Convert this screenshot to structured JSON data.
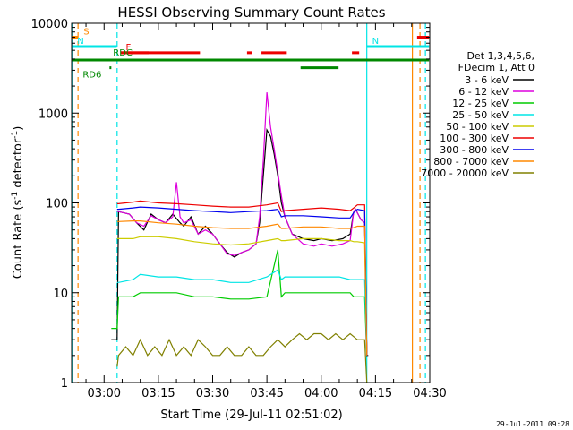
{
  "chart_data": {
    "type": "line",
    "title": "HESSI Observing Summary Count Rates",
    "xlabel": "Start Time (29-Jul-11 02:51:02)",
    "ylabel_main": "Count Rate (s",
    "ylabel_sup1": "-1",
    "ylabel_mid": " detector",
    "ylabel_sup2": "-1",
    "ylabel_end": ")",
    "y_scale": "log",
    "ylim": [
      1,
      10000
    ],
    "xlim_minutes": [
      -8.97,
      90.0
    ],
    "x_ticks": [
      {
        "label": "03:00",
        "min": 0
      },
      {
        "label": "03:15",
        "min": 15
      },
      {
        "label": "03:30",
        "min": 30
      },
      {
        "label": "03:45",
        "min": 45
      },
      {
        "label": "04:00",
        "min": 60
      },
      {
        "label": "04:15",
        "min": 75
      },
      {
        "label": "04:30",
        "min": 90
      }
    ],
    "y_ticks": [
      {
        "label": "1",
        "value": 1
      },
      {
        "label": "10",
        "value": 10
      },
      {
        "label": "100",
        "value": 100
      },
      {
        "label": "1000",
        "value": 1000
      },
      {
        "label": "10000",
        "value": 10000
      }
    ],
    "legend": {
      "position": "right",
      "header1": "Det 1,3,4,5,6,",
      "header2": "FDecim 1, Att 0",
      "entries": [
        {
          "label": "3 - 6 keV",
          "color": "#000000"
        },
        {
          "label": "6 - 12 keV",
          "color": "#dd00dd"
        },
        {
          "label": "12 - 25 keV",
          "color": "#00cc00"
        },
        {
          "label": "25 - 50 keV",
          "color": "#00e5e5"
        },
        {
          "label": "50 - 100 keV",
          "color": "#cccc00"
        },
        {
          "label": "100 - 300 keV",
          "color": "#ee0000"
        },
        {
          "label": "300 - 800 keV",
          "color": "#0000ee"
        },
        {
          "label": "800 - 7000 keV",
          "color": "#ff8800"
        },
        {
          "label": "7000 - 20000 keV",
          "color": "#808000"
        }
      ]
    },
    "series": [
      {
        "name": "3 - 6 keV",
        "color": "#000000",
        "x": [
          2,
          3.6,
          4,
          7,
          9,
          11,
          13,
          15,
          17,
          19,
          21,
          22,
          24,
          26,
          28,
          30,
          32,
          34,
          36,
          38,
          40,
          42,
          43,
          44,
          45,
          46,
          47,
          48,
          49,
          50,
          52,
          55,
          58,
          60,
          63,
          66,
          68,
          69,
          69.5,
          71,
          72,
          72.6,
          73
        ],
        "y": [
          3,
          3,
          80,
          75,
          60,
          50,
          75,
          65,
          60,
          75,
          60,
          55,
          70,
          45,
          55,
          45,
          35,
          28,
          25,
          28,
          30,
          35,
          60,
          200,
          650,
          550,
          350,
          200,
          100,
          70,
          45,
          40,
          38,
          40,
          38,
          40,
          45,
          80,
          85,
          65,
          60,
          2,
          2
        ]
      },
      {
        "name": "6 - 12 keV",
        "color": "#dd00dd",
        "x": [
          3.6,
          4,
          7,
          9,
          11,
          13,
          15,
          17,
          19,
          20,
          21,
          22,
          24,
          26,
          28,
          30,
          32,
          34,
          36,
          38,
          40,
          42,
          43,
          44,
          45,
          46,
          47,
          48,
          49,
          50,
          52,
          55,
          58,
          60,
          63,
          66,
          68,
          69,
          69.5,
          71,
          72,
          72.6
        ],
        "y": [
          80,
          80,
          75,
          60,
          55,
          72,
          65,
          60,
          70,
          170,
          70,
          60,
          65,
          45,
          50,
          45,
          35,
          27,
          26,
          28,
          30,
          35,
          70,
          300,
          1700,
          700,
          400,
          220,
          120,
          70,
          45,
          35,
          33,
          35,
          33,
          35,
          38,
          80,
          85,
          65,
          60,
          2
        ]
      },
      {
        "name": "12 - 25 keV",
        "color": "#00cc00",
        "x": [
          2,
          3.6,
          4,
          8,
          10,
          15,
          20,
          25,
          30,
          35,
          40,
          45,
          48,
          49,
          50,
          55,
          60,
          65,
          68,
          69,
          70,
          72,
          72.6
        ],
        "y": [
          4,
          4,
          9,
          9,
          10,
          10,
          10,
          9,
          9,
          8.5,
          8.5,
          9,
          30,
          9,
          10,
          10,
          10,
          10,
          10,
          9,
          9,
          9,
          2
        ]
      },
      {
        "name": "25 - 50 keV",
        "color": "#00e5e5",
        "x": [
          3.6,
          4,
          8,
          10,
          15,
          20,
          25,
          30,
          35,
          40,
          45,
          48,
          49,
          50,
          55,
          60,
          65,
          68,
          69,
          70,
          72,
          72.6
        ],
        "y": [
          13,
          13,
          14,
          16,
          15,
          15,
          14,
          14,
          13,
          13,
          15,
          18,
          14,
          15,
          15,
          15,
          15,
          14,
          14,
          14,
          14,
          2
        ]
      },
      {
        "name": "50 - 100 keV",
        "color": "#cccc00",
        "x": [
          3.6,
          4,
          8,
          10,
          15,
          20,
          25,
          30,
          35,
          40,
          45,
          48,
          49,
          50,
          55,
          60,
          65,
          68,
          69,
          70,
          72,
          72.6
        ],
        "y": [
          40,
          40,
          40,
          42,
          42,
          40,
          37,
          35,
          34,
          35,
          38,
          40,
          38,
          38,
          40,
          40,
          38,
          38,
          37,
          37,
          36,
          2
        ]
      },
      {
        "name": "100 - 300 keV",
        "color": "#ee0000",
        "x": [
          3.6,
          4,
          8,
          10,
          15,
          20,
          25,
          30,
          35,
          40,
          45,
          48,
          49,
          50,
          55,
          60,
          65,
          68,
          69,
          70,
          72,
          72.6
        ],
        "y": [
          98,
          98,
          102,
          105,
          100,
          98,
          95,
          92,
          90,
          90,
          95,
          100,
          80,
          82,
          85,
          88,
          85,
          82,
          88,
          95,
          95,
          2
        ]
      },
      {
        "name": "300 - 800 keV",
        "color": "#0000ee",
        "x": [
          3.6,
          4,
          8,
          10,
          15,
          20,
          25,
          30,
          35,
          40,
          45,
          48,
          49,
          50,
          55,
          60,
          65,
          68,
          69,
          70,
          72,
          72.6
        ],
        "y": [
          85,
          85,
          88,
          90,
          88,
          85,
          82,
          80,
          78,
          80,
          82,
          85,
          70,
          72,
          72,
          70,
          68,
          68,
          78,
          85,
          82,
          2
        ]
      },
      {
        "name": "800 - 7000 keV",
        "color": "#ff8800",
        "x": [
          3.6,
          4,
          8,
          10,
          15,
          20,
          25,
          30,
          35,
          40,
          45,
          48,
          49,
          50,
          55,
          60,
          65,
          68,
          69,
          70,
          72,
          72.6
        ],
        "y": [
          62,
          62,
          63,
          63,
          60,
          58,
          55,
          53,
          52,
          52,
          55,
          58,
          52,
          52,
          54,
          54,
          52,
          52,
          53,
          55,
          55,
          2
        ]
      },
      {
        "name": "7000 - 20000 keV",
        "color": "#808000",
        "x": [
          3.6,
          4,
          6,
          8,
          10,
          12,
          14,
          16,
          18,
          20,
          22,
          24,
          26,
          28,
          30,
          32,
          34,
          36,
          38,
          40,
          42,
          44,
          46,
          48,
          50,
          52,
          54,
          56,
          58,
          60,
          62,
          64,
          66,
          68,
          70,
          72,
          72.6
        ],
        "y": [
          1.5,
          2,
          2.5,
          2,
          3,
          2,
          2.5,
          2,
          3,
          2,
          2.5,
          2,
          3,
          2.5,
          2,
          2,
          2.5,
          2,
          2,
          2.5,
          2,
          2,
          2.5,
          3,
          2.5,
          3,
          3.5,
          3,
          3.5,
          3.5,
          3,
          3.5,
          3,
          3.5,
          3,
          3,
          1
        ]
      }
    ],
    "flags": [
      {
        "label": "S",
        "color": "#ff8800",
        "x_start": -8.9,
        "x_end": -7.2,
        "y_value": 7000
      },
      {
        "label": "N",
        "color": "#00e5e5",
        "x_start": -8.9,
        "x_end": 3.5,
        "y_value": 5500
      },
      {
        "label": "N",
        "color": "#00e5e5",
        "x_start": 72.6,
        "x_end": 89.8,
        "y_value": 5500
      },
      {
        "label": "F",
        "color": "#ee0000",
        "x_start": 4.5,
        "x_end": 12.3,
        "y_value": 4700
      },
      {
        "label": "",
        "color": "#ee0000",
        "x_start": 4.5,
        "x_end": 26.5,
        "y_value": 4700
      },
      {
        "label": "",
        "color": "#ee0000",
        "x_start": 39.5,
        "x_end": 41,
        "y_value": 4700
      },
      {
        "label": "",
        "color": "#ee0000",
        "x_start": 43.5,
        "x_end": 50.5,
        "y_value": 4700
      },
      {
        "label": "",
        "color": "#ee0000",
        "x_start": 68.5,
        "x_end": 70.5,
        "y_value": 4700
      },
      {
        "label": "",
        "color": "#ee0000",
        "x_start": 86.5,
        "x_end": 89.8,
        "y_value": 7000
      },
      {
        "label": "",
        "color": "#008800",
        "x_start": -8.9,
        "x_end": 89.8,
        "y_value": 3900
      },
      {
        "label": "",
        "color": "#008800",
        "x_start": 54.3,
        "x_end": 64.8,
        "y_value": 3200
      },
      {
        "label": "RD6",
        "color": "#008800",
        "x_start": 1.5,
        "x_end": 2,
        "y_value": 3200
      },
      {
        "label": "RDC",
        "color": "#008800",
        "x_start": 1,
        "x_end": 1,
        "y_value": 4100
      }
    ],
    "vlines": [
      {
        "x": -8.9,
        "color": "#00e5e5",
        "style": "solid"
      },
      {
        "x": -7.2,
        "color": "#ff8800",
        "style": "dashed"
      },
      {
        "x": 3.6,
        "color": "#00e5e5",
        "style": "dashed"
      },
      {
        "x": 72.6,
        "color": "#00e5e5",
        "style": "solid"
      },
      {
        "x": 85.2,
        "color": "#ff8800",
        "style": "solid"
      },
      {
        "x": 87.3,
        "color": "#ff8800",
        "style": "dashed"
      },
      {
        "x": 88.8,
        "color": "#00e5e5",
        "style": "dashed"
      }
    ],
    "timestamp": "29-Jul-2011 09:28"
  }
}
